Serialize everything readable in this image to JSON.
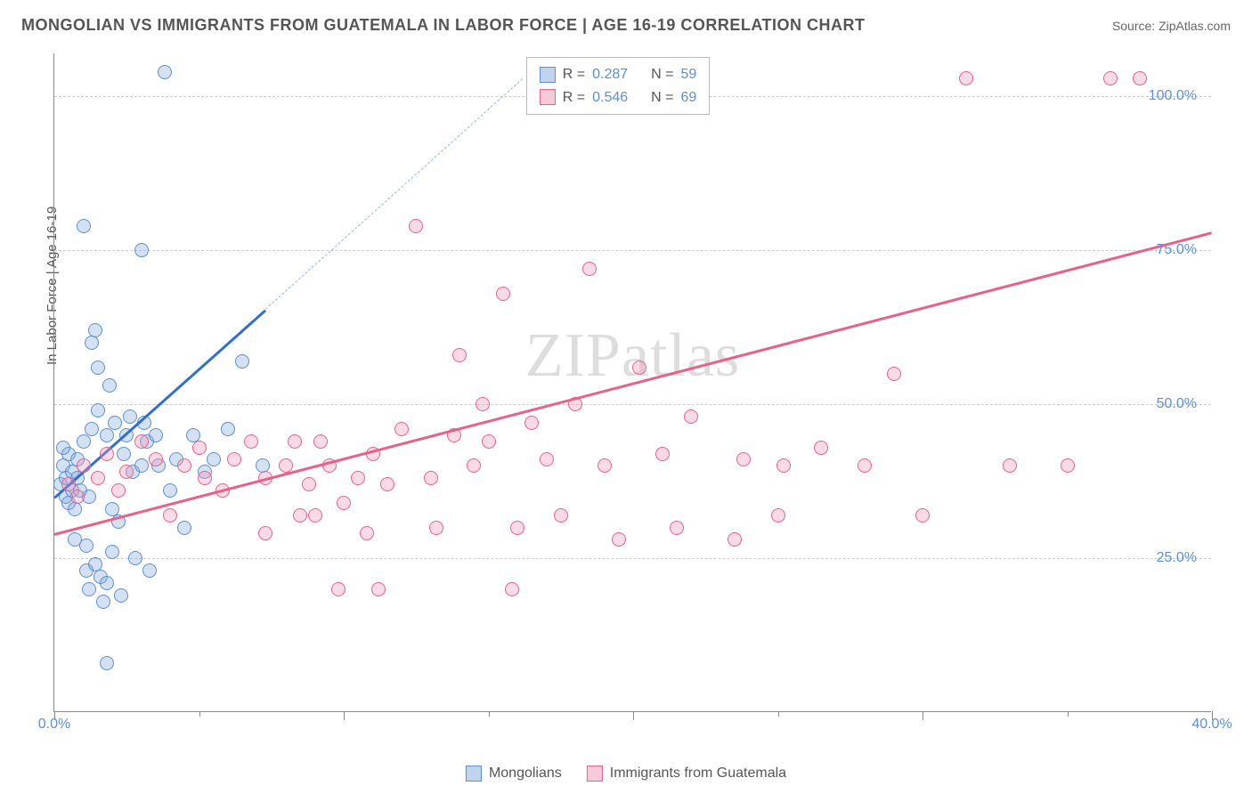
{
  "header": {
    "title": "MONGOLIAN VS IMMIGRANTS FROM GUATEMALA IN LABOR FORCE | AGE 16-19 CORRELATION CHART",
    "source": "Source: ZipAtlas.com"
  },
  "chart": {
    "type": "scatter",
    "ylabel": "In Labor Force | Age 16-19",
    "xlim": [
      0,
      40.0
    ],
    "ylim": [
      0,
      107
    ],
    "xticks": [
      0.0,
      10.0,
      20.0,
      30.0,
      40.0
    ],
    "xticklabels": [
      "0.0%",
      "",
      "",
      "",
      "40.0%"
    ],
    "xtick_minor": [
      5,
      15,
      25,
      35
    ],
    "yticks": [
      25.0,
      50.0,
      75.0,
      100.0
    ],
    "yticklabels": [
      "25.0%",
      "50.0%",
      "75.0%",
      "100.0%"
    ],
    "background": "#ffffff",
    "grid_color": "#cccccc",
    "axis_color": "#888888",
    "label_color": "#5b8fd6",
    "marker_radius": 8,
    "series": [
      {
        "name": "Mongolians",
        "color_fill": "rgba(130,170,220,0.35)",
        "color_stroke": "#5b8fd6",
        "r_value": "0.287",
        "n_value": "59",
        "regression": {
          "x1": 0,
          "y1": 35,
          "x2": 7.3,
          "y2": 65.5,
          "dashed_ext_to": {
            "x": 16.2,
            "y": 103
          }
        },
        "points": [
          [
            0.2,
            37
          ],
          [
            0.3,
            40
          ],
          [
            0.4,
            35
          ],
          [
            0.4,
            38
          ],
          [
            0.5,
            34
          ],
          [
            0.5,
            42
          ],
          [
            0.6,
            36
          ],
          [
            0.6,
            39
          ],
          [
            0.7,
            28
          ],
          [
            0.7,
            33
          ],
          [
            0.8,
            41
          ],
          [
            0.8,
            38
          ],
          [
            0.9,
            36
          ],
          [
            1.0,
            44
          ],
          [
            1.0,
            79
          ],
          [
            1.1,
            23
          ],
          [
            1.1,
            27
          ],
          [
            1.2,
            20
          ],
          [
            1.2,
            35
          ],
          [
            1.3,
            60
          ],
          [
            1.3,
            46
          ],
          [
            1.4,
            62
          ],
          [
            1.4,
            24
          ],
          [
            1.5,
            49
          ],
          [
            1.5,
            56
          ],
          [
            1.6,
            22
          ],
          [
            1.7,
            18
          ],
          [
            1.8,
            45
          ],
          [
            1.8,
            21
          ],
          [
            1.9,
            53
          ],
          [
            2.0,
            26
          ],
          [
            2.0,
            33
          ],
          [
            2.1,
            47
          ],
          [
            2.2,
            31
          ],
          [
            2.3,
            19
          ],
          [
            2.4,
            42
          ],
          [
            2.5,
            45
          ],
          [
            2.6,
            48
          ],
          [
            2.7,
            39
          ],
          [
            2.8,
            25
          ],
          [
            3.0,
            40
          ],
          [
            3.0,
            75
          ],
          [
            3.1,
            47
          ],
          [
            3.2,
            44
          ],
          [
            3.3,
            23
          ],
          [
            3.5,
            45
          ],
          [
            3.6,
            40
          ],
          [
            3.8,
            104
          ],
          [
            4.0,
            36
          ],
          [
            4.2,
            41
          ],
          [
            4.5,
            30
          ],
          [
            4.8,
            45
          ],
          [
            5.2,
            39
          ],
          [
            5.5,
            41
          ],
          [
            6.0,
            46
          ],
          [
            6.5,
            57
          ],
          [
            7.2,
            40
          ],
          [
            1.8,
            8
          ],
          [
            0.3,
            43
          ]
        ]
      },
      {
        "name": "Immigrants from Guatemala",
        "color_fill": "rgba(240,150,180,0.35)",
        "color_stroke": "#e6628a",
        "r_value": "0.546",
        "n_value": "69",
        "regression": {
          "x1": 0,
          "y1": 29,
          "x2": 40,
          "y2": 78
        },
        "points": [
          [
            0.5,
            37
          ],
          [
            0.8,
            35
          ],
          [
            1.0,
            40
          ],
          [
            1.5,
            38
          ],
          [
            1.8,
            42
          ],
          [
            2.2,
            36
          ],
          [
            2.5,
            39
          ],
          [
            3.0,
            44
          ],
          [
            3.5,
            41
          ],
          [
            4.0,
            32
          ],
          [
            4.5,
            40
          ],
          [
            5.0,
            43
          ],
          [
            5.2,
            38
          ],
          [
            5.8,
            36
          ],
          [
            6.2,
            41
          ],
          [
            6.8,
            44
          ],
          [
            7.3,
            38
          ],
          [
            7.3,
            29
          ],
          [
            8.0,
            40
          ],
          [
            8.3,
            44
          ],
          [
            8.5,
            32
          ],
          [
            8.8,
            37
          ],
          [
            9.2,
            44
          ],
          [
            9.5,
            40
          ],
          [
            9.8,
            20
          ],
          [
            10.0,
            34
          ],
          [
            10.5,
            38
          ],
          [
            10.8,
            29
          ],
          [
            11.0,
            42
          ],
          [
            11.2,
            20
          ],
          [
            11.5,
            37
          ],
          [
            12.0,
            46
          ],
          [
            12.5,
            79
          ],
          [
            13.0,
            38
          ],
          [
            13.2,
            30
          ],
          [
            13.8,
            45
          ],
          [
            14.0,
            58
          ],
          [
            14.5,
            40
          ],
          [
            14.8,
            50
          ],
          [
            15.0,
            44
          ],
          [
            15.5,
            68
          ],
          [
            15.8,
            20
          ],
          [
            16.0,
            30
          ],
          [
            16.5,
            47
          ],
          [
            17.0,
            41
          ],
          [
            17.5,
            32
          ],
          [
            18.0,
            50
          ],
          [
            18.5,
            72
          ],
          [
            19.0,
            40
          ],
          [
            19.5,
            28
          ],
          [
            20.2,
            56
          ],
          [
            21.0,
            42
          ],
          [
            21.5,
            30
          ],
          [
            21.8,
            103
          ],
          [
            22.0,
            48
          ],
          [
            23.5,
            28
          ],
          [
            23.8,
            41
          ],
          [
            25.0,
            32
          ],
          [
            25.2,
            40
          ],
          [
            26.5,
            43
          ],
          [
            28.0,
            40
          ],
          [
            29.0,
            55
          ],
          [
            30.0,
            32
          ],
          [
            31.5,
            103
          ],
          [
            33.0,
            40
          ],
          [
            36.5,
            103
          ],
          [
            37.5,
            103
          ],
          [
            35.0,
            40
          ],
          [
            9.0,
            32
          ]
        ]
      }
    ],
    "legend_bottom": [
      {
        "swatch": "blue",
        "label": "Mongolians"
      },
      {
        "swatch": "pink",
        "label": "Immigrants from Guatemala"
      }
    ],
    "watermark": "ZIPatlas"
  },
  "stat_box": {
    "rows": [
      {
        "swatch": "blue",
        "r_label": "R =",
        "r_val": "0.287",
        "n_label": "N =",
        "n_val": "59"
      },
      {
        "swatch": "pink",
        "r_label": "R =",
        "r_val": "0.546",
        "n_label": "N =",
        "n_val": "69"
      }
    ]
  }
}
